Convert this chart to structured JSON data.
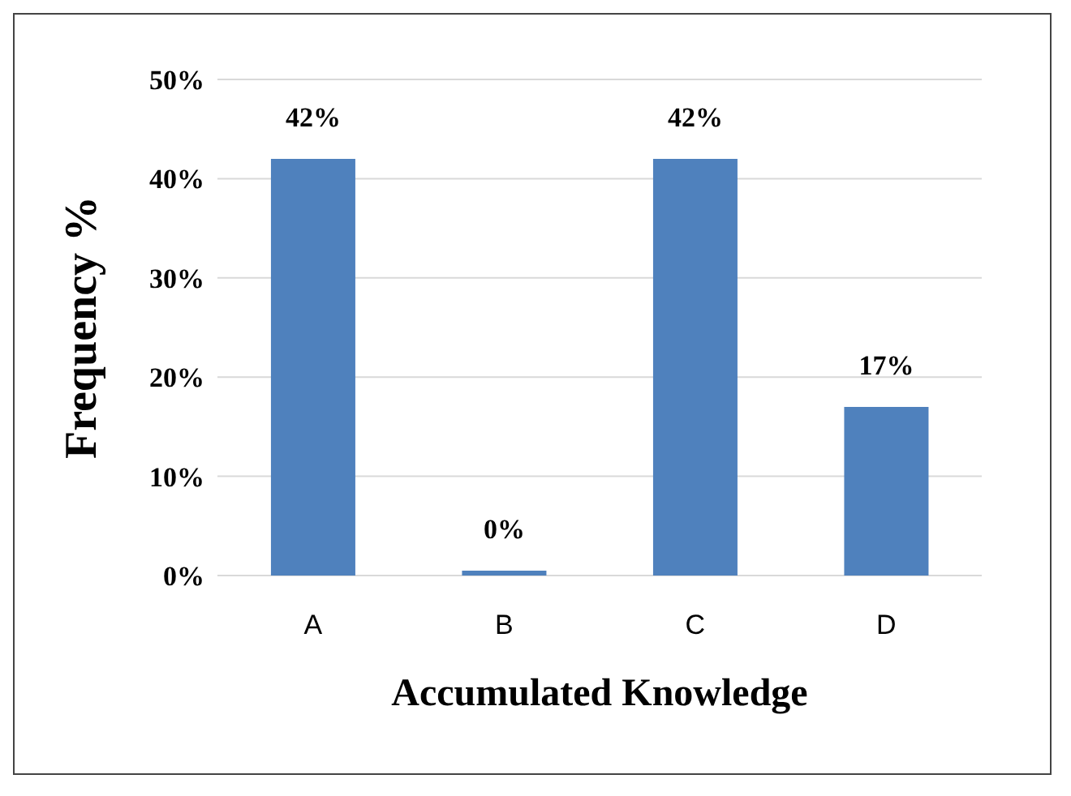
{
  "chart_data": {
    "type": "bar",
    "xlabel": "Accumulated Knowledge",
    "ylabel": "Frequency %",
    "categories": [
      "A",
      "B",
      "C",
      "D"
    ],
    "values": [
      42,
      0,
      42,
      17
    ],
    "value_labels": [
      "42%",
      "0%",
      "42%",
      "17%"
    ],
    "color": "#4f81bd",
    "ylim": [
      0,
      50
    ],
    "yticks": [
      {
        "value": 0,
        "label": "0%"
      },
      {
        "value": 10,
        "label": "10%"
      },
      {
        "value": 20,
        "label": "20%"
      },
      {
        "value": 30,
        "label": "30%"
      },
      {
        "value": 40,
        "label": "40%"
      },
      {
        "value": 50,
        "label": "50%"
      }
    ],
    "grid": "y"
  }
}
